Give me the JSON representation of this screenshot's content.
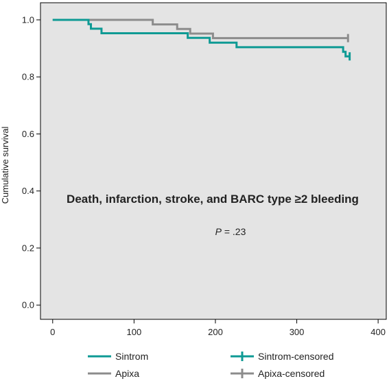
{
  "chart_data": {
    "type": "line",
    "subtype": "kaplan-meier step",
    "ylabel": "Cumulative survival",
    "xlim": [
      -15,
      410
    ],
    "ylim": [
      -0.05,
      1.06
    ],
    "xticks": [
      0,
      100,
      200,
      300,
      400
    ],
    "xtick_labels": [
      "0",
      "100",
      "200",
      "300",
      "400"
    ],
    "yticks": [
      0.0,
      0.2,
      0.4,
      0.6,
      0.8,
      1.0
    ],
    "ytick_labels": [
      "0.0",
      "0.2",
      "0.4",
      "0.6",
      "0.8",
      "1.0"
    ],
    "grid": false,
    "background": "#e4e4e4",
    "annotation_title": "Death, infarction, stroke, and BARC type ≥2 bleeding",
    "annotation_p_italic": "P",
    "annotation_p_rest": " = .23",
    "series": [
      {
        "name": "Sintrom",
        "color": "#0e9a94",
        "x": [
          0,
          44,
          47,
          60,
          166,
          193,
          226,
          357,
          360,
          364
        ],
        "y": [
          1.0,
          0.985,
          0.969,
          0.953,
          0.937,
          0.92,
          0.904,
          0.888,
          0.872,
          0.872
        ],
        "censored": [
          {
            "x": 365,
            "y": 0.872
          }
        ]
      },
      {
        "name": "Apixa",
        "color": "#8c8c8c",
        "x": [
          0,
          123,
          153,
          169,
          197,
          363
        ],
        "y": [
          1.0,
          0.984,
          0.968,
          0.952,
          0.936,
          0.936
        ],
        "censored": [
          {
            "x": 363,
            "y": 0.936
          }
        ]
      }
    ],
    "legend": [
      {
        "label": "Sintrom",
        "kind": "line",
        "series": 0
      },
      {
        "label": "Sintrom-censored",
        "kind": "censored",
        "series": 0
      },
      {
        "label": "Apixa",
        "kind": "line",
        "series": 1
      },
      {
        "label": "Apixa-censored",
        "kind": "censored",
        "series": 1
      }
    ],
    "legend_position": "bottom"
  }
}
